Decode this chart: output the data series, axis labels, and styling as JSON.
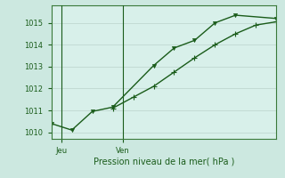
{
  "title": "Pression niveau de la mer( hPa )",
  "background_color": "#cce8e0",
  "plot_bg_color": "#d8f0ea",
  "grid_color": "#c0d8d0",
  "line_color": "#1a5c1a",
  "spine_color": "#3a7a3a",
  "ylim": [
    1009.7,
    1015.8
  ],
  "yticks": [
    1010,
    1011,
    1012,
    1013,
    1014,
    1015
  ],
  "line1_x": [
    0,
    1,
    2,
    3,
    5,
    6,
    7,
    8,
    9,
    11
  ],
  "line1_y": [
    1010.4,
    1010.1,
    1010.95,
    1011.15,
    1013.05,
    1013.85,
    1014.2,
    1015.0,
    1015.35,
    1015.2
  ],
  "line2_x": [
    3,
    4,
    5,
    6,
    7,
    8,
    9,
    10,
    11
  ],
  "line2_y": [
    1011.1,
    1011.6,
    1012.1,
    1012.75,
    1013.4,
    1014.0,
    1014.5,
    1014.9,
    1015.05
  ],
  "xlim": [
    0,
    11
  ],
  "vline_x": [
    0.5,
    3.5
  ],
  "xtick_positions": [
    0.5,
    3.5
  ],
  "xtick_labels": [
    "Jeu",
    "Ven"
  ],
  "ylabel_fontsize": 6,
  "xlabel_fontsize": 7,
  "tick_fontsize": 6,
  "marker_size": 3,
  "linewidth": 1.0
}
